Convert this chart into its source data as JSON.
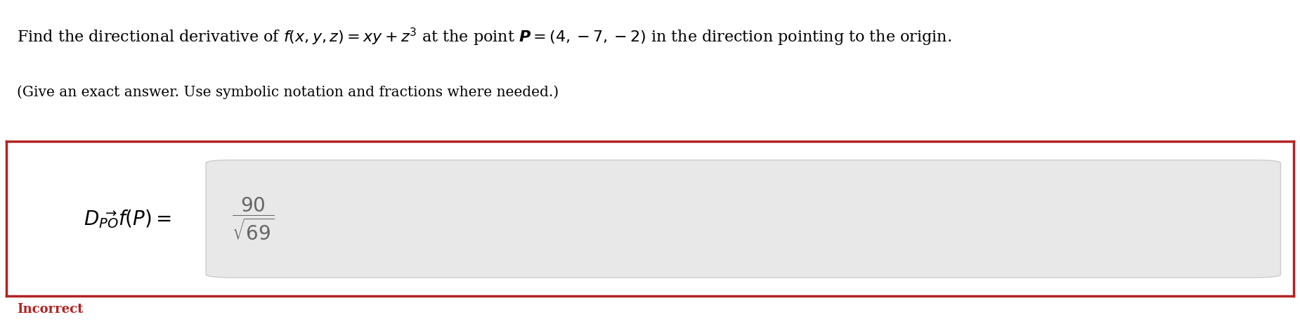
{
  "bg_color": "#ffffff",
  "title_line1": "Find the directional derivative of $f(x, y, z) = xy + z^3$ at the point $\\boldsymbol{P} = (4, -7, -2)$ in the direction pointing to the origin.",
  "title_line2": "(Give an exact answer. Use symbolic notation and fractions where needed.)",
  "label_text": "$D_{\\overrightarrow{PO}}f(P) =$",
  "answer_fraction": "$\\dfrac{90}{\\sqrt{69}}$",
  "box_border_color": "#b22222",
  "answer_box_bg": "#e8e8e8",
  "answer_box_edge": "#cccccc",
  "incorrect_text": "Incorrect",
  "incorrect_color": "#b22222",
  "title_fontsize": 16,
  "subtitle_fontsize": 14.5,
  "label_fontsize": 20,
  "answer_fontsize": 20,
  "incorrect_fontsize": 13,
  "fig_width": 18.5,
  "fig_height": 4.68,
  "dpi": 100
}
